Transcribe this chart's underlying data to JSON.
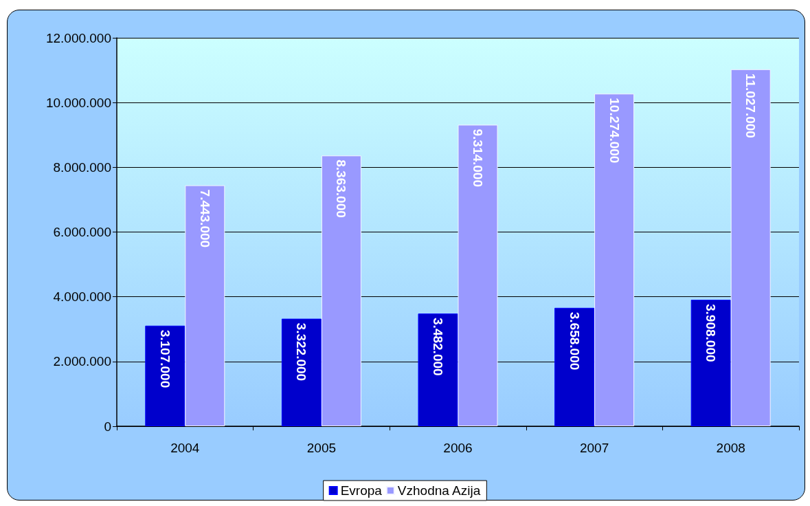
{
  "chart_data": {
    "type": "bar",
    "categories": [
      "2004",
      "2005",
      "2006",
      "2007",
      "2008"
    ],
    "series": [
      {
        "name": "Evropa",
        "color": "#0000cc",
        "values": [
          3107000,
          3322000,
          3482000,
          3658000,
          3908000
        ],
        "value_labels": [
          "3.107.000",
          "3.322.000",
          "3.482.000",
          "3.658.000",
          "3.908.000"
        ]
      },
      {
        "name": "Vzhodna Azija",
        "color": "#9999ff",
        "values": [
          7443000,
          8363000,
          9314000,
          10274000,
          11027000
        ],
        "value_labels": [
          "7.443.000",
          "8.363.000",
          "9.314.000",
          "10.274.000",
          "11.027.000"
        ]
      }
    ],
    "ylim": [
      0,
      12000000
    ],
    "yticks": [
      {
        "value": 0,
        "label": "0"
      },
      {
        "value": 2000000,
        "label": "2.000.000"
      },
      {
        "value": 4000000,
        "label": "4.000.000"
      },
      {
        "value": 6000000,
        "label": "6.000.000"
      },
      {
        "value": 8000000,
        "label": "8.000.000"
      },
      {
        "value": 10000000,
        "label": "10.000.000"
      },
      {
        "value": 12000000,
        "label": "12.000.000"
      }
    ],
    "grid": "y",
    "legend": "bottom"
  }
}
